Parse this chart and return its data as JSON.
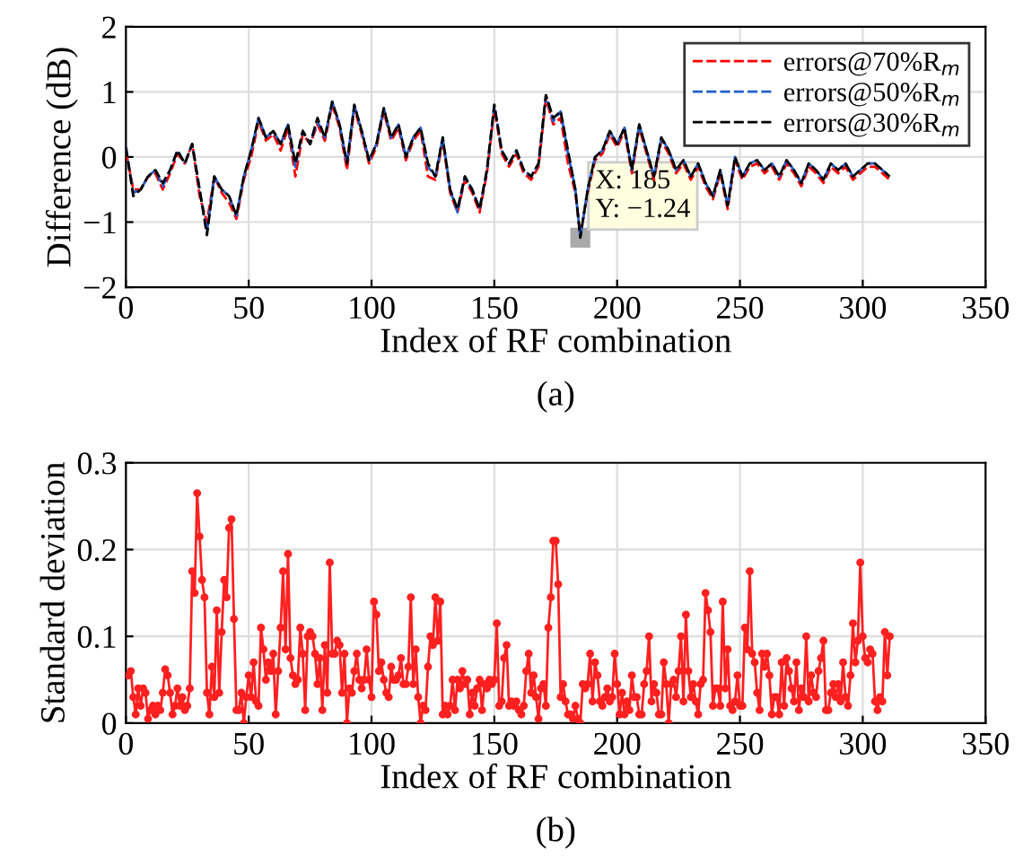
{
  "chart_data": [
    {
      "type": "line",
      "xlabel": "Index of RF combination",
      "ylabel": "Difference (dB)",
      "xlim": [
        0,
        350
      ],
      "xticks": [
        0,
        50,
        100,
        150,
        200,
        250,
        300,
        350
      ],
      "ylim": [
        -2,
        2
      ],
      "yticks": [
        {
          "value": -2,
          "label": "−2"
        },
        {
          "value": -1,
          "label": "−1"
        },
        0,
        1,
        2
      ],
      "grid": true,
      "legend": "top right",
      "line_style": "dashed",
      "marker": "none",
      "x": [
        0,
        3,
        6,
        9,
        12,
        15,
        18,
        21,
        24,
        27,
        30,
        33,
        36,
        39,
        42,
        45,
        48,
        51,
        54,
        57,
        60,
        63,
        66,
        69,
        72,
        75,
        78,
        81,
        84,
        87,
        90,
        93,
        96,
        99,
        102,
        105,
        108,
        111,
        114,
        117,
        120,
        123,
        126,
        129,
        132,
        135,
        138,
        141,
        144,
        147,
        150,
        153,
        156,
        159,
        162,
        165,
        168,
        171,
        174,
        177,
        180,
        183,
        185,
        188,
        191,
        194,
        197,
        200,
        203,
        206,
        209,
        212,
        215,
        218,
        221,
        224,
        227,
        230,
        233,
        236,
        239,
        242,
        245,
        248,
        251,
        254,
        257,
        260,
        263,
        266,
        269,
        272,
        275,
        278,
        281,
        284,
        287,
        290,
        293,
        296,
        299,
        302,
        305,
        308,
        311
      ],
      "series": [
        {
          "name": "errors@70%R$_{m}$",
          "color": "#ff0000",
          "values": [
            0.1,
            -0.5,
            -0.5,
            -0.3,
            -0.25,
            -0.5,
            -0.25,
            0.05,
            -0.1,
            0.2,
            -0.6,
            -1.0,
            -0.3,
            -0.55,
            -0.7,
            -0.95,
            -0.35,
            0.0,
            0.55,
            0.25,
            0.35,
            0.1,
            0.45,
            -0.3,
            0.35,
            0.2,
            0.5,
            0.25,
            0.8,
            0.45,
            -0.2,
            0.75,
            0.35,
            -0.1,
            0.15,
            0.7,
            0.25,
            0.45,
            -0.05,
            0.25,
            0.4,
            -0.3,
            -0.35,
            0.25,
            -0.55,
            -0.85,
            -0.35,
            -0.55,
            -0.85,
            -0.25,
            0.75,
            0.05,
            -0.15,
            0.05,
            -0.25,
            -0.35,
            -0.15,
            0.9,
            0.5,
            0.6,
            -0.1,
            -0.55,
            -1.2,
            -0.55,
            -0.05,
            0.05,
            0.35,
            0.15,
            0.4,
            -0.25,
            0.45,
            0.05,
            -0.35,
            0.25,
            0.05,
            -0.25,
            -0.1,
            -0.35,
            -0.15,
            -0.45,
            -0.65,
            -0.25,
            -0.8,
            -0.05,
            -0.35,
            -0.15,
            -0.1,
            -0.25,
            -0.15,
            -0.35,
            -0.1,
            -0.25,
            -0.45,
            -0.15,
            -0.25,
            -0.4,
            -0.15,
            -0.25,
            -0.15,
            -0.35,
            -0.25,
            -0.15,
            -0.15,
            -0.25,
            -0.35
          ]
        },
        {
          "name": "errors@50%R$_{m}$",
          "color": "#1f5fcc",
          "values": [
            0.15,
            -0.55,
            -0.5,
            -0.3,
            -0.2,
            -0.45,
            -0.2,
            0.1,
            -0.1,
            0.2,
            -0.5,
            -1.15,
            -0.3,
            -0.5,
            -0.6,
            -0.9,
            -0.3,
            0.1,
            0.6,
            0.3,
            0.4,
            0.2,
            0.5,
            -0.15,
            0.4,
            0.2,
            0.55,
            0.3,
            0.85,
            0.5,
            -0.1,
            0.8,
            0.4,
            -0.05,
            0.2,
            0.75,
            0.3,
            0.5,
            0.0,
            0.3,
            0.45,
            -0.15,
            -0.3,
            0.3,
            -0.5,
            -0.85,
            -0.3,
            -0.5,
            -0.8,
            -0.2,
            0.8,
            0.1,
            -0.1,
            0.1,
            -0.2,
            -0.3,
            -0.1,
            0.95,
            0.55,
            0.7,
            0.05,
            -0.5,
            -1.24,
            -0.5,
            0.0,
            0.1,
            0.4,
            0.2,
            0.45,
            -0.2,
            0.5,
            0.1,
            -0.3,
            0.3,
            0.1,
            -0.2,
            -0.05,
            -0.3,
            -0.1,
            -0.4,
            -0.6,
            -0.2,
            -0.75,
            0.0,
            -0.3,
            -0.1,
            -0.05,
            -0.2,
            -0.1,
            -0.3,
            -0.05,
            -0.2,
            -0.4,
            -0.1,
            -0.2,
            -0.35,
            -0.1,
            -0.2,
            -0.1,
            -0.3,
            -0.2,
            -0.1,
            -0.1,
            -0.2,
            -0.3
          ]
        },
        {
          "name": "errors@30%R$_{m}$",
          "color": "#000000",
          "values": [
            0.15,
            -0.6,
            -0.5,
            -0.3,
            -0.2,
            -0.4,
            -0.2,
            0.1,
            -0.1,
            0.2,
            -0.5,
            -1.2,
            -0.3,
            -0.5,
            -0.6,
            -0.9,
            -0.3,
            0.1,
            0.6,
            0.3,
            0.4,
            0.2,
            0.5,
            -0.1,
            0.4,
            0.2,
            0.6,
            0.3,
            0.85,
            0.5,
            -0.1,
            0.8,
            0.4,
            -0.05,
            0.2,
            0.75,
            0.3,
            0.5,
            0.0,
            0.3,
            0.45,
            -0.1,
            -0.3,
            0.3,
            -0.5,
            -0.8,
            -0.3,
            -0.5,
            -0.8,
            -0.2,
            0.8,
            0.1,
            -0.1,
            0.1,
            -0.2,
            -0.3,
            -0.1,
            0.95,
            0.6,
            0.7,
            0.1,
            -0.5,
            -1.24,
            -0.5,
            0.0,
            0.1,
            0.4,
            0.2,
            0.45,
            -0.2,
            0.5,
            0.1,
            -0.3,
            0.3,
            0.1,
            -0.2,
            -0.05,
            -0.3,
            -0.1,
            -0.4,
            -0.6,
            -0.2,
            -0.75,
            0.0,
            -0.3,
            -0.1,
            -0.05,
            -0.2,
            -0.1,
            -0.3,
            -0.05,
            -0.2,
            -0.4,
            -0.1,
            -0.2,
            -0.35,
            -0.1,
            -0.2,
            -0.1,
            -0.3,
            -0.2,
            -0.1,
            -0.1,
            -0.2,
            -0.3
          ]
        }
      ],
      "annotations": [
        {
          "text": "X: 185\nY: −1.24",
          "x": 185,
          "y": -1.24
        },
        "(a)"
      ]
    },
    {
      "type": "line",
      "xlabel": "Index of RF combination",
      "ylabel": "Standard deviation",
      "xlim": [
        0,
        350
      ],
      "xticks": [
        0,
        50,
        100,
        150,
        200,
        250,
        300,
        350
      ],
      "ylim": [
        0,
        0.3
      ],
      "yticks": [
        0,
        0.1,
        0.2,
        0.3
      ],
      "grid": true,
      "marker": "circle",
      "line_style": "solid",
      "x": [
        1,
        2,
        3,
        4,
        5,
        6,
        7,
        8,
        9,
        10,
        11,
        12,
        13,
        14,
        15,
        16,
        17,
        18,
        19,
        20,
        21,
        22,
        23,
        24,
        25,
        26,
        27,
        28,
        29,
        30,
        31,
        32,
        33,
        34,
        35,
        36,
        37,
        38,
        39,
        40,
        41,
        42,
        43,
        44,
        45,
        46,
        47,
        48,
        49,
        50,
        51,
        52,
        53,
        54,
        55,
        56,
        57,
        58,
        59,
        60,
        61,
        62,
        63,
        64,
        65,
        66,
        67,
        68,
        69,
        70,
        71,
        72,
        73,
        74,
        75,
        76,
        77,
        78,
        79,
        80,
        81,
        82,
        83,
        84,
        85,
        86,
        87,
        88,
        89,
        90,
        91,
        92,
        93,
        94,
        95,
        96,
        97,
        98,
        99,
        100,
        101,
        102,
        103,
        104,
        105,
        106,
        107,
        108,
        109,
        110,
        111,
        112,
        113,
        114,
        115,
        116,
        117,
        118,
        119,
        120,
        121,
        122,
        123,
        124,
        125,
        126,
        127,
        128,
        129,
        130,
        131,
        132,
        133,
        134,
        135,
        136,
        137,
        138,
        139,
        140,
        141,
        142,
        143,
        144,
        145,
        146,
        147,
        148,
        149,
        150,
        151,
        152,
        153,
        154,
        155,
        156,
        157,
        158,
        159,
        160,
        161,
        162,
        163,
        164,
        165,
        166,
        167,
        168,
        169,
        170,
        171,
        172,
        173,
        174,
        175,
        176,
        177,
        178,
        179,
        180,
        181,
        182,
        183,
        184,
        185,
        186,
        187,
        188,
        189,
        190,
        191,
        192,
        193,
        194,
        195,
        196,
        197,
        198,
        199,
        200,
        201,
        202,
        203,
        204,
        205,
        206,
        207,
        208,
        209,
        210,
        211,
        212,
        213,
        214,
        215,
        216,
        217,
        218,
        219,
        220,
        221,
        222,
        223,
        224,
        225,
        226,
        227,
        228,
        229,
        230,
        231,
        232,
        233,
        234,
        235,
        236,
        237,
        238,
        239,
        240,
        241,
        242,
        243,
        244,
        245,
        246,
        247,
        248,
        249,
        250,
        251,
        252,
        253,
        254,
        255,
        256,
        257,
        258,
        259,
        260,
        261,
        262,
        263,
        264,
        265,
        266,
        267,
        268,
        269,
        270,
        271,
        272,
        273,
        274,
        275,
        276,
        277,
        278,
        279,
        280,
        281,
        282,
        283,
        284,
        285,
        286,
        287,
        288,
        289,
        290,
        291,
        292,
        293,
        294,
        295,
        296,
        297,
        298,
        299,
        300,
        301,
        302,
        303,
        304,
        305,
        306,
        307,
        308,
        309,
        310,
        311
      ],
      "series": [
        {
          "color": "#ff2020",
          "values": [
            0.055,
            0.06,
            0.03,
            0.01,
            0.04,
            0.02,
            0.04,
            0.035,
            0.005,
            0.015,
            0.02,
            0.01,
            0.02,
            0.015,
            0.035,
            0.062,
            0.055,
            0.035,
            0.01,
            0.02,
            0.04,
            0.02,
            0.03,
            0.015,
            0.02,
            0.04,
            0.175,
            0.15,
            0.265,
            0.215,
            0.165,
            0.145,
            0.035,
            0.01,
            0.065,
            0.03,
            0.13,
            0.035,
            0.105,
            0.165,
            0.145,
            0.225,
            0.235,
            0.12,
            0.015,
            0.015,
            0.035,
            0.0,
            0.03,
            0.055,
            0.03,
            0.07,
            0.025,
            0.02,
            0.11,
            0.085,
            0.05,
            0.07,
            0.06,
            0.08,
            0.01,
            0.06,
            0.11,
            0.175,
            0.085,
            0.195,
            0.075,
            0.055,
            0.045,
            0.05,
            0.11,
            0.08,
            0.015,
            0.1,
            0.105,
            0.1,
            0.08,
            0.045,
            0.075,
            0.015,
            0.09,
            0.035,
            0.185,
            0.08,
            0.08,
            0.095,
            0.09,
            0.035,
            0.08,
            0.0,
            0.04,
            0.035,
            0.06,
            0.08,
            0.05,
            0.04,
            0.05,
            0.085,
            0.05,
            0.03,
            0.14,
            0.125,
            0.06,
            0.07,
            0.05,
            0.035,
            0.03,
            0.065,
            0.05,
            0.05,
            0.055,
            0.075,
            0.045,
            0.045,
            0.065,
            0.145,
            0.045,
            0.085,
            0.03,
            0.0,
            0.02,
            0.015,
            0.065,
            0.1,
            0.09,
            0.145,
            0.095,
            0.14,
            0.01,
            0.02,
            0.01,
            0.02,
            0.05,
            0.015,
            0.05,
            0.04,
            0.06,
            0.045,
            0.05,
            0.01,
            0.035,
            0.02,
            0.04,
            0.05,
            0.015,
            0.045,
            0.04,
            0.05,
            0.045,
            0.05,
            0.115,
            0.02,
            0.025,
            0.075,
            0.09,
            0.02,
            0.025,
            0.02,
            0.025,
            0.015,
            0.01,
            0.02,
            0.06,
            0.08,
            0.035,
            0.055,
            0.03,
            0.005,
            0.04,
            0.045,
            0.02,
            0.11,
            0.145,
            0.21,
            0.21,
            0.16,
            0.03,
            0.045,
            0.025,
            0.01,
            0.01,
            0.005,
            0.02,
            0.005,
            0.0,
            0.045,
            0.04,
            0.045,
            0.08,
            0.025,
            0.07,
            0.055,
            0.025,
            0.02,
            0.03,
            0.04,
            0.025,
            0.03,
            0.08,
            0.045,
            0.01,
            0.035,
            0.01,
            0.025,
            0.015,
            0.055,
            0.03,
            0.03,
            0.01,
            0.01,
            0.045,
            0.06,
            0.1,
            0.025,
            0.045,
            0.035,
            0.01,
            0.01,
            0.07,
            0.045,
            0.0,
            0.045,
            0.05,
            0.03,
            0.06,
            0.1,
            0.025,
            0.125,
            0.06,
            0.03,
            0.045,
            0.025,
            0.01,
            0.045,
            0.05,
            0.15,
            0.13,
            0.105,
            0.02,
            0.04,
            0.04,
            0.02,
            0.14,
            0.04,
            0.085,
            0.02,
            0.015,
            0.025,
            0.055,
            0.02,
            0.02,
            0.11,
            0.085,
            0.175,
            0.08,
            0.07,
            0.035,
            0.015,
            0.08,
            0.065,
            0.08,
            0.055,
            0.01,
            0.03,
            0.03,
            0.01,
            0.07,
            0.02,
            0.075,
            0.06,
            0.04,
            0.025,
            0.07,
            0.015,
            0.04,
            0.03,
            0.1,
            0.025,
            0.055,
            0.035,
            0.03,
            0.06,
            0.075,
            0.095,
            0.015,
            0.015,
            0.035,
            0.045,
            0.03,
            0.045,
            0.025,
            0.07,
            0.03,
            0.02,
            0.055,
            0.115,
            0.07,
            0.095,
            0.185,
            0.1,
            0.075,
            0.07,
            0.085,
            0.08,
            0.025,
            0.015,
            0.03,
            0.025,
            0.105,
            0.055,
            0.1
          ]
        }
      ],
      "annotations": [
        "(b)"
      ]
    }
  ]
}
